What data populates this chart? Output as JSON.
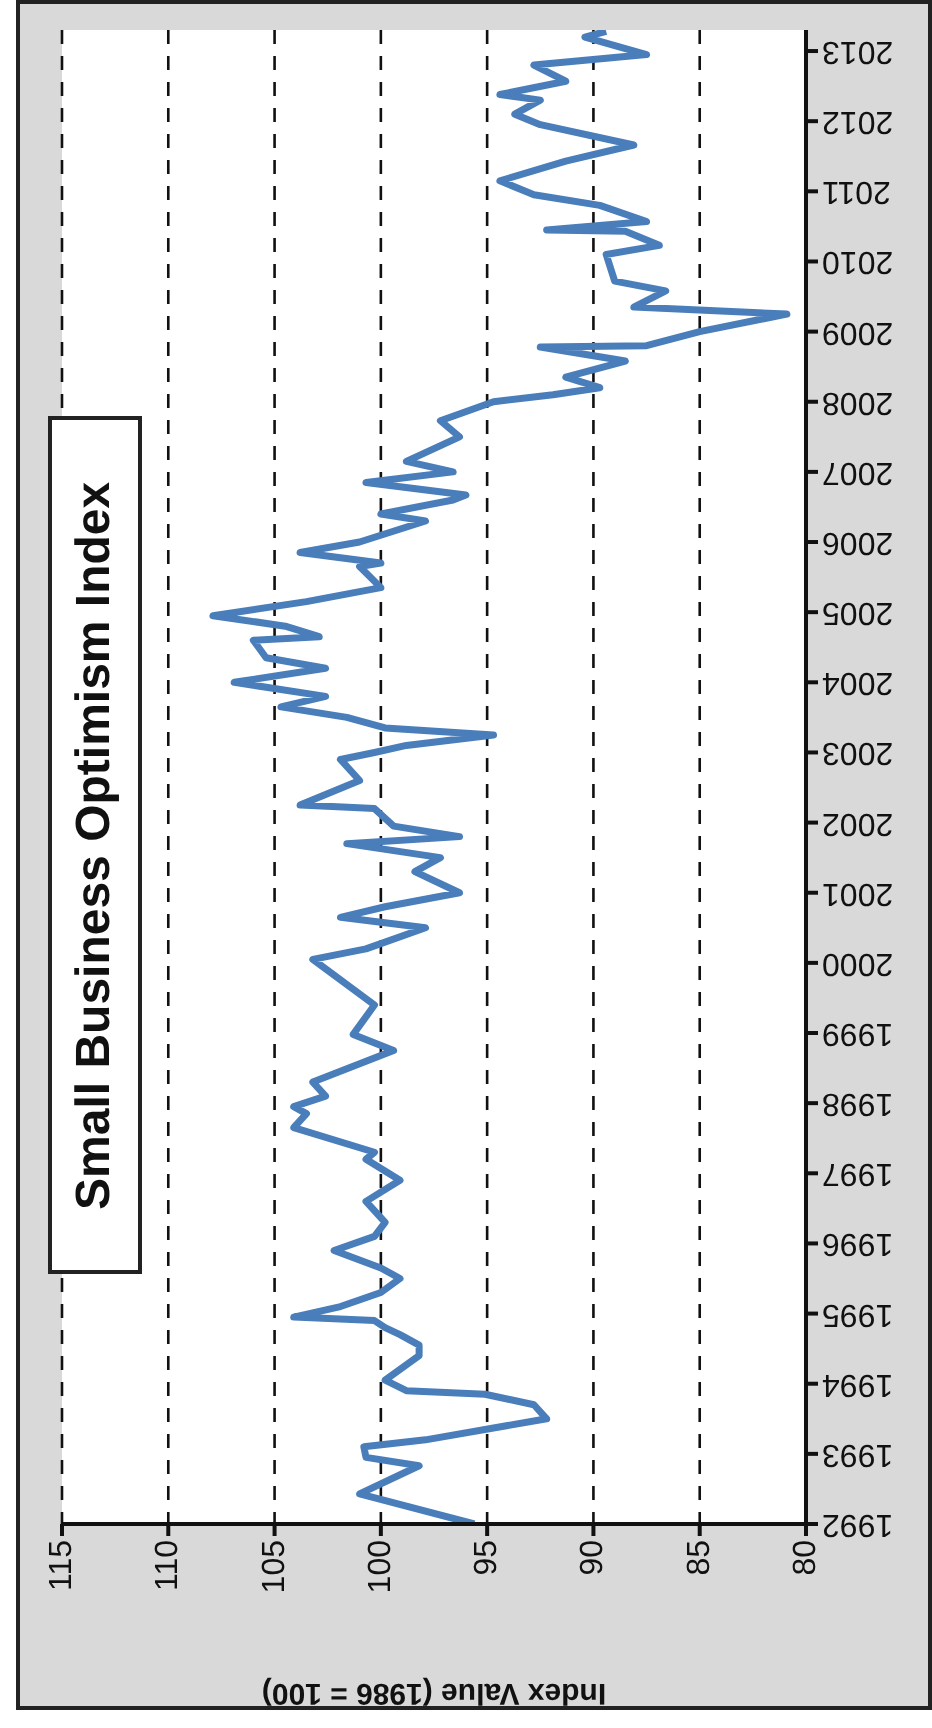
{
  "chart_data": {
    "type": "line",
    "orientation": "horizontal",
    "title": "Small Business Optimism Index",
    "xlabel": "Index Value (1986 = 100)",
    "x": [
      1992.0,
      1992.43,
      1992.83,
      1992.95,
      1993.1,
      1993.2,
      1993.5,
      1993.7,
      1993.85,
      1993.9,
      1994.05,
      1994.4,
      1994.55,
      1994.7,
      1994.8,
      1994.9,
      1994.95,
      1995.1,
      1995.3,
      1995.5,
      1995.65,
      1995.9,
      1996.1,
      1996.3,
      1996.6,
      1996.9,
      1997.2,
      1997.3,
      1997.65,
      1997.85,
      1997.95,
      1998.1,
      1998.3,
      1998.75,
      1998.98,
      1999.4,
      2000.05,
      2000.2,
      2000.5,
      2000.65,
      2000.8,
      2001.0,
      2001.3,
      2001.5,
      2001.7,
      2001.8,
      2001.95,
      2002.2,
      2002.25,
      2002.6,
      2002.9,
      2003.0,
      2003.1,
      2003.25,
      2003.35,
      2003.5,
      2003.65,
      2003.8,
      2004.0,
      2004.2,
      2004.35,
      2004.6,
      2004.65,
      2004.8,
      2004.95,
      2005.15,
      2005.35,
      2005.65,
      2005.7,
      2005.85,
      2006.0,
      2006.3,
      2006.4,
      2006.6,
      2006.67,
      2006.85,
      2007.0,
      2007.15,
      2007.5,
      2007.73,
      2008.0,
      2008.1,
      2008.2,
      2008.35,
      2008.58,
      2008.78,
      2008.8,
      2009.0,
      2009.25,
      2009.35,
      2009.58,
      2009.72,
      2010.1,
      2010.23,
      2010.43,
      2010.45,
      2010.57,
      2010.8,
      2010.95,
      2011.15,
      2011.43,
      2011.66,
      2011.95,
      2012.1,
      2012.3,
      2012.38,
      2012.57,
      2012.8,
      2012.95,
      2013.2,
      2013.28
    ],
    "series": [
      {
        "color": "#4a7ebb",
        "values": [
          95.6,
          101.0,
          98.2,
          100.7,
          100.8,
          97.9,
          92.2,
          92.8,
          95.1,
          98.8,
          99.8,
          98.2,
          98.2,
          99.1,
          99.8,
          100.3,
          104.1,
          101.9,
          100.0,
          99.1,
          100.0,
          102.2,
          100.3,
          99.8,
          100.7,
          99.1,
          100.7,
          100.3,
          104.1,
          103.5,
          104.1,
          102.6,
          103.2,
          99.4,
          101.3,
          100.3,
          103.2,
          100.7,
          97.9,
          101.9,
          99.8,
          96.3,
          98.4,
          97.2,
          101.6,
          96.3,
          99.4,
          100.3,
          103.8,
          101.0,
          101.9,
          100.3,
          98.8,
          94.7,
          99.8,
          101.6,
          104.7,
          102.6,
          106.9,
          102.6,
          105.4,
          106.0,
          102.9,
          104.5,
          107.9,
          103.5,
          100.0,
          101.0,
          100.0,
          103.8,
          101.0,
          97.9,
          100.0,
          96.6,
          96.0,
          100.7,
          96.6,
          98.8,
          96.3,
          97.2,
          94.7,
          91.9,
          89.7,
          91.3,
          88.5,
          92.5,
          87.5,
          85.0,
          80.9,
          88.1,
          86.6,
          89.0,
          89.4,
          86.9,
          88.5,
          92.2,
          87.5,
          89.7,
          92.8,
          94.4,
          91.3,
          88.1,
          92.5,
          93.7,
          92.5,
          94.4,
          91.3,
          92.8,
          87.5,
          90.4,
          89.4
        ]
      }
    ],
    "ylim": [
      1992,
      2013.3
    ],
    "yticks": [
      1992,
      1993,
      1994,
      1995,
      1996,
      1997,
      1998,
      1999,
      2000,
      2001,
      2002,
      2003,
      2004,
      2005,
      2006,
      2007,
      2008,
      2009,
      2010,
      2011,
      2012,
      2013
    ],
    "xlim": [
      115,
      80
    ],
    "xticks": [
      115,
      110,
      105,
      100,
      95,
      90,
      85,
      80
    ],
    "grid": "x",
    "marker": "none",
    "line_style": "solid"
  }
}
